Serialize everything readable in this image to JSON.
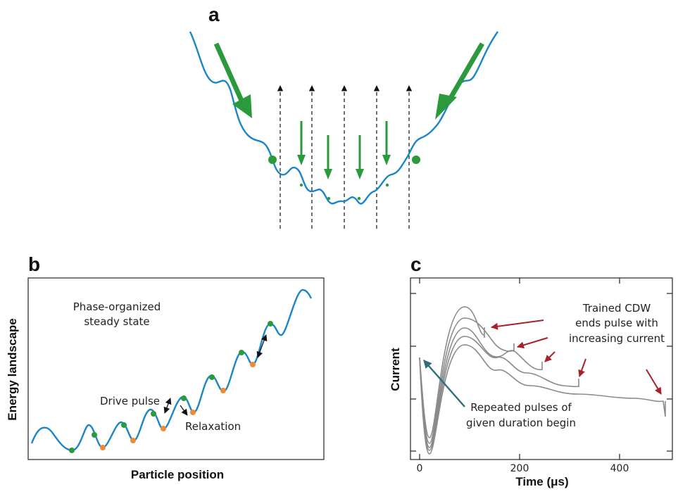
{
  "figure": {
    "panel_a": {
      "letter": "a"
    },
    "panel_b": {
      "letter": "b",
      "ylabel": "Energy landscape",
      "xlabel": "Particle position",
      "annotation_steady_line1": "Phase-organized",
      "annotation_steady_line2": "steady state",
      "annotation_drive": "Drive pulse",
      "annotation_relax": "Relaxation"
    },
    "panel_c": {
      "letter": "c",
      "ylabel": "Current",
      "xlabel": "Time (μs)",
      "xticks": [
        "0",
        "200",
        "400"
      ],
      "annotation_trained_line1": "Trained CDW",
      "annotation_trained_line2": "ends pulse with",
      "annotation_trained_line3": "increasing current",
      "annotation_repeated_line1": "Repeated pulses of",
      "annotation_repeated_line2": "given duration begin"
    }
  },
  "colors": {
    "curve_blue": "#1a85c8",
    "green": "#2a9a3c",
    "orange": "#f08a35",
    "trace_gray": "#8a8a8a",
    "arrow_red": "#a8202a",
    "arrow_teal": "#2e6f7a",
    "axis": "#222222"
  }
}
